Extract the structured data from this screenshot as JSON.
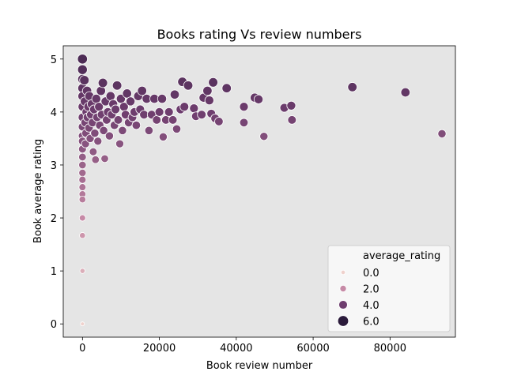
{
  "chart_data": {
    "type": "scatter",
    "title": "Books rating Vs review numbers",
    "xlabel": "Book review number",
    "ylabel": "Book average rating",
    "xlim": [
      -5000,
      97000
    ],
    "ylim": [
      -0.25,
      5.25
    ],
    "xticks": [
      0,
      20000,
      40000,
      60000,
      80000
    ],
    "xtick_labels": [
      "0",
      "20000",
      "40000",
      "60000",
      "80000"
    ],
    "yticks": [
      0,
      1,
      2,
      3,
      4,
      5
    ],
    "ytick_labels": [
      "0",
      "1",
      "2",
      "3",
      "4",
      "5"
    ],
    "grid": false,
    "plot_background": "#e5e5e5",
    "hue": "average_rating",
    "legend": {
      "title": "average_rating",
      "position": "lower-right",
      "entries": [
        {
          "label": "0.0",
          "value": 0.0
        },
        {
          "label": "2.0",
          "value": 2.0
        },
        {
          "label": "4.0",
          "value": 4.0
        },
        {
          "label": "6.0",
          "value": 6.0
        }
      ]
    },
    "colors": {
      "low": "#efd1cc",
      "mid_low": "#c68aa6",
      "mid_high": "#6e3d6e",
      "high": "#2b1b3b"
    },
    "points": [
      {
        "x": 0,
        "y": 5.0
      },
      {
        "x": 0,
        "y": 4.8
      },
      {
        "x": 0,
        "y": 4.62
      },
      {
        "x": 0,
        "y": 4.45
      },
      {
        "x": 0,
        "y": 4.3
      },
      {
        "x": 0,
        "y": 4.1
      },
      {
        "x": 0,
        "y": 3.9
      },
      {
        "x": 0,
        "y": 3.72
      },
      {
        "x": 0,
        "y": 3.55
      },
      {
        "x": 0,
        "y": 3.45
      },
      {
        "x": 0,
        "y": 3.3
      },
      {
        "x": 0,
        "y": 3.15
      },
      {
        "x": 0,
        "y": 3.0
      },
      {
        "x": 0,
        "y": 2.85
      },
      {
        "x": 0,
        "y": 2.72
      },
      {
        "x": 0,
        "y": 2.58
      },
      {
        "x": 0,
        "y": 2.45
      },
      {
        "x": 0,
        "y": 2.35
      },
      {
        "x": 0,
        "y": 2.0
      },
      {
        "x": 0,
        "y": 1.67
      },
      {
        "x": 0,
        "y": 1.0
      },
      {
        "x": 0,
        "y": 0.0
      },
      {
        "x": 500,
        "y": 4.6
      },
      {
        "x": 600,
        "y": 4.2
      },
      {
        "x": 700,
        "y": 3.8
      },
      {
        "x": 800,
        "y": 3.4
      },
      {
        "x": 900,
        "y": 3.6
      },
      {
        "x": 1000,
        "y": 4.0
      },
      {
        "x": 1200,
        "y": 4.4
      },
      {
        "x": 1300,
        "y": 3.9
      },
      {
        "x": 1500,
        "y": 4.1
      },
      {
        "x": 1700,
        "y": 3.7
      },
      {
        "x": 1800,
        "y": 4.3
      },
      {
        "x": 2000,
        "y": 3.5
      },
      {
        "x": 2200,
        "y": 3.95
      },
      {
        "x": 2400,
        "y": 4.15
      },
      {
        "x": 2600,
        "y": 3.8
      },
      {
        "x": 2800,
        "y": 3.25
      },
      {
        "x": 3000,
        "y": 4.05
      },
      {
        "x": 3200,
        "y": 3.6
      },
      {
        "x": 3400,
        "y": 3.1
      },
      {
        "x": 3600,
        "y": 4.25
      },
      {
        "x": 3800,
        "y": 3.9
      },
      {
        "x": 4000,
        "y": 3.45
      },
      {
        "x": 4300,
        "y": 4.1
      },
      {
        "x": 4500,
        "y": 3.75
      },
      {
        "x": 4800,
        "y": 4.4
      },
      {
        "x": 5000,
        "y": 3.95
      },
      {
        "x": 5300,
        "y": 4.55
      },
      {
        "x": 5500,
        "y": 3.65
      },
      {
        "x": 5800,
        "y": 3.12
      },
      {
        "x": 6000,
        "y": 4.2
      },
      {
        "x": 6300,
        "y": 3.85
      },
      {
        "x": 6600,
        "y": 4.0
      },
      {
        "x": 7000,
        "y": 3.55
      },
      {
        "x": 7300,
        "y": 4.3
      },
      {
        "x": 7600,
        "y": 3.95
      },
      {
        "x": 8000,
        "y": 4.15
      },
      {
        "x": 8300,
        "y": 3.75
      },
      {
        "x": 8600,
        "y": 4.05
      },
      {
        "x": 9000,
        "y": 4.5
      },
      {
        "x": 9300,
        "y": 3.85
      },
      {
        "x": 9700,
        "y": 3.4
      },
      {
        "x": 10000,
        "y": 4.25
      },
      {
        "x": 10400,
        "y": 3.65
      },
      {
        "x": 10800,
        "y": 4.1
      },
      {
        "x": 11200,
        "y": 3.95
      },
      {
        "x": 11600,
        "y": 4.35
      },
      {
        "x": 12000,
        "y": 3.8
      },
      {
        "x": 12500,
        "y": 4.2
      },
      {
        "x": 13000,
        "y": 3.9
      },
      {
        "x": 13500,
        "y": 4.0
      },
      {
        "x": 14000,
        "y": 3.75
      },
      {
        "x": 14500,
        "y": 4.3
      },
      {
        "x": 15000,
        "y": 4.05
      },
      {
        "x": 15500,
        "y": 4.4
      },
      {
        "x": 16000,
        "y": 3.95
      },
      {
        "x": 16700,
        "y": 4.25
      },
      {
        "x": 17300,
        "y": 3.65
      },
      {
        "x": 18000,
        "y": 3.95
      },
      {
        "x": 18700,
        "y": 4.25
      },
      {
        "x": 19300,
        "y": 3.85
      },
      {
        "x": 20000,
        "y": 4.0
      },
      {
        "x": 20700,
        "y": 4.25
      },
      {
        "x": 21000,
        "y": 3.53
      },
      {
        "x": 21700,
        "y": 3.85
      },
      {
        "x": 22500,
        "y": 4.0
      },
      {
        "x": 23500,
        "y": 3.85
      },
      {
        "x": 24000,
        "y": 4.33
      },
      {
        "x": 24500,
        "y": 3.68
      },
      {
        "x": 25500,
        "y": 4.05
      },
      {
        "x": 26000,
        "y": 4.57
      },
      {
        "x": 26500,
        "y": 4.1
      },
      {
        "x": 27500,
        "y": 4.5
      },
      {
        "x": 29000,
        "y": 4.07
      },
      {
        "x": 29500,
        "y": 3.92
      },
      {
        "x": 31000,
        "y": 3.95
      },
      {
        "x": 31500,
        "y": 4.27
      },
      {
        "x": 32500,
        "y": 4.4
      },
      {
        "x": 33000,
        "y": 4.22
      },
      {
        "x": 33500,
        "y": 3.97
      },
      {
        "x": 34000,
        "y": 4.56
      },
      {
        "x": 34500,
        "y": 3.88
      },
      {
        "x": 35500,
        "y": 3.82
      },
      {
        "x": 37500,
        "y": 4.45
      },
      {
        "x": 42000,
        "y": 4.1
      },
      {
        "x": 42000,
        "y": 3.8
      },
      {
        "x": 44800,
        "y": 4.27
      },
      {
        "x": 45800,
        "y": 4.24
      },
      {
        "x": 47200,
        "y": 3.54
      },
      {
        "x": 52500,
        "y": 4.08
      },
      {
        "x": 54300,
        "y": 4.12
      },
      {
        "x": 54500,
        "y": 3.85
      },
      {
        "x": 70200,
        "y": 4.47
      },
      {
        "x": 84000,
        "y": 4.37
      },
      {
        "x": 93500,
        "y": 3.59
      }
    ]
  }
}
